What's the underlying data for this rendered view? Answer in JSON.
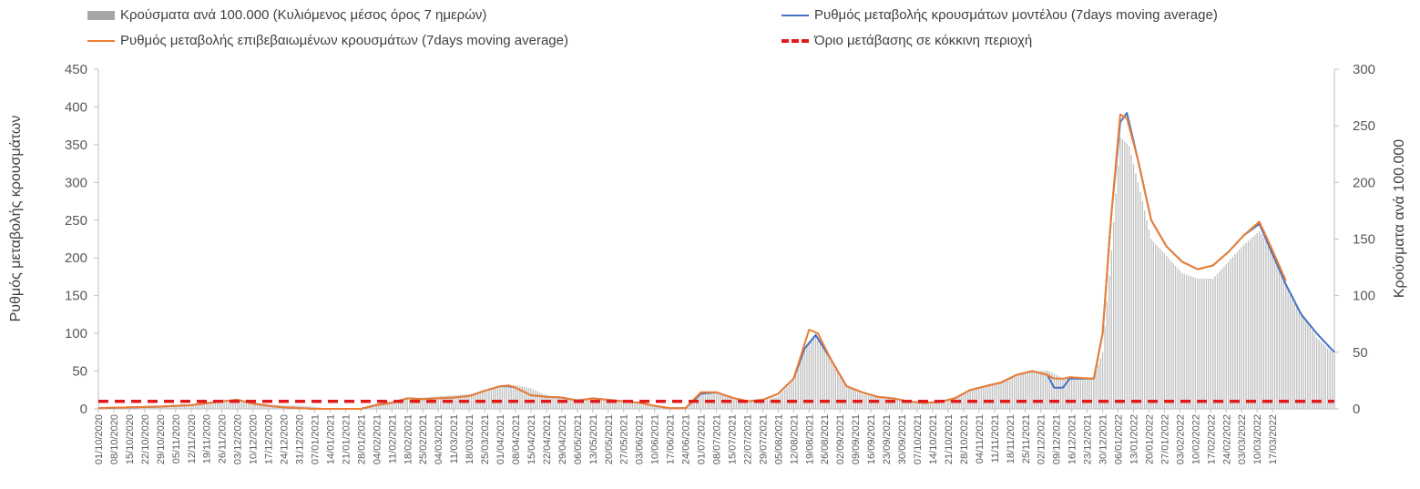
{
  "chart_data": {
    "type": "bar+line",
    "title": "",
    "legend": [
      {
        "key": "bars",
        "label": "Κρούσματα ανά 100.000 (Κυλιόμενος μέσος όρος 7 ημερών)",
        "color": "#a6a6a6"
      },
      {
        "key": "model",
        "label": "Ρυθμός μεταβολής κρουσμάτων μοντέλου (7days moving average)",
        "color": "#4472c4"
      },
      {
        "key": "confirmed",
        "label": "Ρυθμός μεταβολής επιβεβαιωμένων κρουσμάτων (7days moving average)",
        "color": "#ed7d31"
      },
      {
        "key": "threshold",
        "label": "Όριο μετάβασης σε κόκκινη περιοχή",
        "color": "#e31a1c"
      }
    ],
    "ylabel_left": "Ρυθμός μεταβολής κρουσμάτων",
    "ylabel_right": "Κρούσματα ανά 100.000",
    "ylim_left": [
      0,
      450
    ],
    "yticks_left": [
      0,
      50,
      100,
      150,
      200,
      250,
      300,
      350,
      400,
      450
    ],
    "ylim_right": [
      0,
      300
    ],
    "yticks_right": [
      0,
      50,
      100,
      150,
      200,
      250,
      300
    ],
    "threshold": 10,
    "x_start": "01/10/2020",
    "x_end": "20/03/2022",
    "x_tick_labels": [
      "01/10/2020",
      "08/10/2020",
      "15/10/2020",
      "22/10/2020",
      "29/10/2020",
      "05/11/2020",
      "12/11/2020",
      "19/11/2020",
      "26/11/2020",
      "03/12/2020",
      "10/12/2020",
      "17/12/2020",
      "24/12/2020",
      "31/12/2020",
      "07/01/2021",
      "14/01/2021",
      "21/01/2021",
      "28/01/2021",
      "04/02/2021",
      "11/02/2021",
      "18/02/2021",
      "25/02/2021",
      "04/03/2021",
      "11/03/2021",
      "18/03/2021",
      "25/03/2021",
      "01/04/2021",
      "08/04/2021",
      "15/04/2021",
      "22/04/2021",
      "29/04/2021",
      "06/05/2021",
      "13/05/2021",
      "20/05/2021",
      "27/05/2021",
      "03/06/2021",
      "10/06/2021",
      "17/06/2021",
      "24/06/2021",
      "01/07/2021",
      "08/07/2021",
      "15/07/2021",
      "22/07/2021",
      "29/07/2021",
      "05/08/2021",
      "12/08/2021",
      "19/08/2021",
      "26/08/2021",
      "02/09/2021",
      "09/09/2021",
      "16/09/2021",
      "23/09/2021",
      "30/09/2021",
      "07/10/2021",
      "14/10/2021",
      "21/10/2021",
      "28/10/2021",
      "04/11/2021",
      "11/11/2021",
      "18/11/2021",
      "25/11/2021",
      "02/12/2021",
      "09/12/2021",
      "16/12/2021",
      "23/12/2021",
      "30/12/2021",
      "06/01/2022",
      "13/01/2022",
      "20/01/2022",
      "27/01/2022",
      "03/02/2022",
      "10/02/2022",
      "17/02/2022",
      "24/02/2022",
      "03/03/2022",
      "10/03/2022",
      "17/03/2022"
    ],
    "series": [
      {
        "name": "Κρούσματα ανά 100.000 (Κυλιόμενος μέσος όρος 7 ημερών)",
        "axis": "right",
        "points_by_day": [
          [
            0,
            1
          ],
          [
            14,
            2
          ],
          [
            28,
            3
          ],
          [
            42,
            4
          ],
          [
            56,
            7
          ],
          [
            63,
            8
          ],
          [
            70,
            6
          ],
          [
            77,
            4
          ],
          [
            84,
            3
          ],
          [
            91,
            3
          ],
          [
            98,
            2
          ],
          [
            105,
            0
          ],
          [
            112,
            0
          ],
          [
            119,
            1
          ],
          [
            126,
            5
          ],
          [
            133,
            7
          ],
          [
            140,
            9
          ],
          [
            147,
            10
          ],
          [
            154,
            11
          ],
          [
            161,
            12
          ],
          [
            168,
            13
          ],
          [
            175,
            15
          ],
          [
            182,
            20
          ],
          [
            189,
            21
          ],
          [
            196,
            18
          ],
          [
            203,
            12
          ],
          [
            210,
            10
          ],
          [
            217,
            9
          ],
          [
            224,
            9
          ],
          [
            231,
            7
          ],
          [
            238,
            6
          ],
          [
            245,
            4
          ],
          [
            252,
            2
          ],
          [
            259,
            1
          ],
          [
            266,
            1
          ],
          [
            273,
            12
          ],
          [
            280,
            15
          ],
          [
            287,
            10
          ],
          [
            294,
            7
          ],
          [
            301,
            7
          ],
          [
            308,
            11
          ],
          [
            315,
            25
          ],
          [
            320,
            55
          ],
          [
            325,
            66
          ],
          [
            332,
            45
          ],
          [
            339,
            20
          ],
          [
            346,
            13
          ],
          [
            353,
            10
          ],
          [
            360,
            10
          ],
          [
            367,
            7
          ],
          [
            374,
            6
          ],
          [
            381,
            7
          ],
          [
            388,
            10
          ],
          [
            395,
            16
          ],
          [
            402,
            21
          ],
          [
            409,
            24
          ],
          [
            416,
            29
          ],
          [
            423,
            33
          ],
          [
            430,
            34
          ],
          [
            437,
            27
          ],
          [
            444,
            27
          ],
          [
            451,
            28
          ],
          [
            455,
            50
          ],
          [
            459,
            140
          ],
          [
            463,
            240
          ],
          [
            467,
            232
          ],
          [
            471,
            200
          ],
          [
            477,
            150
          ],
          [
            484,
            135
          ],
          [
            491,
            120
          ],
          [
            498,
            115
          ],
          [
            505,
            115
          ],
          [
            512,
            130
          ],
          [
            519,
            145
          ],
          [
            526,
            157
          ],
          [
            532,
            140
          ],
          [
            538,
            110
          ],
          [
            545,
            85
          ],
          [
            552,
            63
          ],
          [
            560,
            48
          ]
        ]
      },
      {
        "name": "Ρυθμός μεταβολής κρουσμάτων μοντέλου (7days moving average)",
        "axis": "left",
        "points_by_day": [
          [
            0,
            1
          ],
          [
            14,
            2
          ],
          [
            28,
            3
          ],
          [
            42,
            5
          ],
          [
            56,
            10
          ],
          [
            63,
            12
          ],
          [
            70,
            7
          ],
          [
            77,
            4
          ],
          [
            84,
            2
          ],
          [
            91,
            1
          ],
          [
            98,
            0
          ],
          [
            105,
            0
          ],
          [
            112,
            0
          ],
          [
            119,
            0
          ],
          [
            126,
            5
          ],
          [
            133,
            8
          ],
          [
            140,
            14
          ],
          [
            147,
            13
          ],
          [
            154,
            14
          ],
          [
            161,
            15
          ],
          [
            168,
            17
          ],
          [
            175,
            24
          ],
          [
            182,
            30
          ],
          [
            186,
            30
          ],
          [
            189,
            28
          ],
          [
            196,
            18
          ],
          [
            203,
            16
          ],
          [
            210,
            15
          ],
          [
            217,
            11
          ],
          [
            224,
            14
          ],
          [
            231,
            12
          ],
          [
            238,
            10
          ],
          [
            245,
            8
          ],
          [
            252,
            4
          ],
          [
            259,
            1
          ],
          [
            266,
            1
          ],
          [
            273,
            20
          ],
          [
            280,
            22
          ],
          [
            287,
            15
          ],
          [
            294,
            10
          ],
          [
            301,
            12
          ],
          [
            308,
            20
          ],
          [
            315,
            40
          ],
          [
            320,
            80
          ],
          [
            325,
            98
          ],
          [
            332,
            65
          ],
          [
            339,
            30
          ],
          [
            346,
            22
          ],
          [
            353,
            16
          ],
          [
            360,
            14
          ],
          [
            367,
            10
          ],
          [
            374,
            8
          ],
          [
            381,
            9
          ],
          [
            388,
            14
          ],
          [
            395,
            25
          ],
          [
            402,
            30
          ],
          [
            409,
            35
          ],
          [
            416,
            45
          ],
          [
            423,
            50
          ],
          [
            430,
            45
          ],
          [
            433,
            28
          ],
          [
            437,
            28
          ],
          [
            440,
            40
          ],
          [
            451,
            40
          ],
          [
            455,
            100
          ],
          [
            459,
            260
          ],
          [
            463,
            380
          ],
          [
            466,
            392
          ],
          [
            471,
            330
          ],
          [
            477,
            250
          ],
          [
            484,
            215
          ],
          [
            491,
            195
          ],
          [
            498,
            185
          ],
          [
            505,
            190
          ],
          [
            512,
            208
          ],
          [
            519,
            230
          ],
          [
            526,
            245
          ],
          [
            532,
            205
          ],
          [
            538,
            165
          ],
          [
            545,
            125
          ],
          [
            552,
            100
          ],
          [
            560,
            75
          ]
        ]
      },
      {
        "name": "Ρυθμός μεταβολής επιβεβαιωμένων κρουσμάτων (7days moving average)",
        "axis": "left",
        "points_by_day": [
          [
            0,
            1
          ],
          [
            14,
            2
          ],
          [
            28,
            3
          ],
          [
            42,
            5
          ],
          [
            56,
            10
          ],
          [
            63,
            12
          ],
          [
            70,
            7
          ],
          [
            77,
            4
          ],
          [
            84,
            2
          ],
          [
            91,
            1
          ],
          [
            98,
            0
          ],
          [
            105,
            0
          ],
          [
            112,
            0
          ],
          [
            119,
            0
          ],
          [
            126,
            5
          ],
          [
            133,
            8
          ],
          [
            140,
            14
          ],
          [
            147,
            13
          ],
          [
            154,
            14
          ],
          [
            161,
            15
          ],
          [
            168,
            17
          ],
          [
            175,
            24
          ],
          [
            182,
            30
          ],
          [
            186,
            31
          ],
          [
            189,
            28
          ],
          [
            196,
            18
          ],
          [
            203,
            16
          ],
          [
            210,
            15
          ],
          [
            217,
            11
          ],
          [
            224,
            14
          ],
          [
            231,
            12
          ],
          [
            238,
            10
          ],
          [
            245,
            8
          ],
          [
            252,
            4
          ],
          [
            259,
            1
          ],
          [
            266,
            1
          ],
          [
            273,
            22
          ],
          [
            280,
            22
          ],
          [
            287,
            15
          ],
          [
            294,
            10
          ],
          [
            301,
            12
          ],
          [
            308,
            20
          ],
          [
            315,
            40
          ],
          [
            322,
            105
          ],
          [
            326,
            100
          ],
          [
            332,
            65
          ],
          [
            339,
            30
          ],
          [
            346,
            22
          ],
          [
            353,
            16
          ],
          [
            360,
            14
          ],
          [
            367,
            10
          ],
          [
            374,
            8
          ],
          [
            381,
            9
          ],
          [
            388,
            14
          ],
          [
            395,
            25
          ],
          [
            402,
            30
          ],
          [
            409,
            35
          ],
          [
            416,
            45
          ],
          [
            423,
            50
          ],
          [
            430,
            45
          ],
          [
            433,
            40
          ],
          [
            437,
            40
          ],
          [
            440,
            42
          ],
          [
            451,
            40
          ],
          [
            455,
            100
          ],
          [
            459,
            260
          ],
          [
            463,
            390
          ],
          [
            466,
            385
          ],
          [
            471,
            330
          ],
          [
            477,
            250
          ],
          [
            484,
            215
          ],
          [
            491,
            195
          ],
          [
            498,
            185
          ],
          [
            505,
            190
          ],
          [
            512,
            208
          ],
          [
            519,
            230
          ],
          [
            526,
            248
          ],
          [
            532,
            210
          ],
          [
            538,
            170
          ]
        ]
      }
    ]
  }
}
